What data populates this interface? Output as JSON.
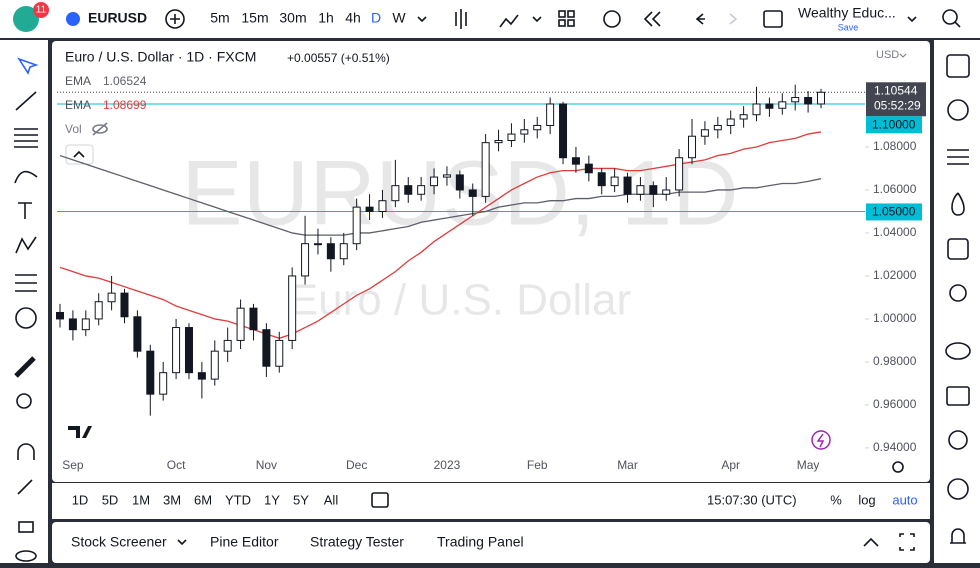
{
  "toolbar": {
    "badge": "11",
    "symbol": "EURUSD",
    "intervals": [
      "5m",
      "15m",
      "30m",
      "1h",
      "4h",
      "D",
      "W"
    ],
    "active_interval": "D",
    "account": "Wealthy Educ...",
    "save": "Save"
  },
  "chart_data": {
    "type": "candlestick",
    "title": "Euro / U.S. Dollar · 1D · FXCM",
    "change": "+0.00557 (+0.51%)",
    "watermark": "EURUSD, 1D",
    "watermark_subtitle": "Euro / U.S. Dollar",
    "currency": "USD",
    "countdown": "05:52:29",
    "volume_label": "Vol",
    "categories": [
      null,
      "Sep",
      null,
      null,
      null,
      null,
      null,
      null,
      null,
      "Oct",
      null,
      null,
      null,
      null,
      null,
      null,
      "Nov",
      null,
      null,
      null,
      null,
      null,
      null,
      "Dec",
      null,
      null,
      null,
      null,
      null,
      null,
      "2023",
      null,
      null,
      null,
      null,
      null,
      null,
      "Feb",
      null,
      null,
      null,
      null,
      null,
      null,
      "Mar",
      null,
      null,
      null,
      null,
      null,
      null,
      null,
      "Apr",
      null,
      null,
      null,
      null,
      null,
      "May",
      null
    ],
    "open": [
      1.003,
      1.0,
      0.995,
      1.0,
      1.008,
      1.012,
      1.001,
      0.985,
      0.965,
      0.975,
      0.996,
      0.975,
      0.972,
      0.985,
      0.99,
      1.005,
      0.995,
      0.978,
      0.99,
      1.02,
      1.035,
      1.035,
      1.028,
      1.035,
      1.052,
      1.05,
      1.055,
      1.062,
      1.058,
      1.062,
      1.066,
      1.067,
      1.06,
      1.057,
      1.082,
      1.083,
      1.086,
      1.088,
      1.09,
      1.1,
      1.075,
      1.072,
      1.068,
      1.062,
      1.066,
      1.058,
      1.062,
      1.058,
      1.06,
      1.075,
      1.085,
      1.088,
      1.09,
      1.093,
      1.095,
      1.1,
      1.098,
      1.101,
      1.103,
      1.1
    ],
    "high": [
      1.007,
      1.004,
      1.004,
      1.012,
      1.02,
      1.014,
      1.004,
      0.988,
      0.98,
      1.0,
      0.998,
      0.98,
      0.99,
      0.996,
      1.009,
      1.007,
      0.998,
      0.994,
      1.024,
      1.048,
      1.042,
      1.038,
      1.04,
      1.056,
      1.058,
      1.06,
      1.074,
      1.066,
      1.066,
      1.07,
      1.071,
      1.069,
      1.063,
      1.086,
      1.088,
      1.091,
      1.093,
      1.094,
      1.103,
      1.101,
      1.08,
      1.076,
      1.07,
      1.07,
      1.068,
      1.066,
      1.064,
      1.066,
      1.079,
      1.093,
      1.092,
      1.094,
      1.097,
      1.099,
      1.108,
      1.103,
      1.105,
      1.109,
      1.106,
      1.107
    ],
    "low": [
      0.996,
      0.99,
      0.992,
      0.997,
      1.004,
      0.998,
      0.982,
      0.955,
      0.962,
      0.972,
      0.972,
      0.963,
      0.969,
      0.98,
      0.986,
      0.99,
      0.973,
      0.975,
      0.986,
      1.016,
      1.03,
      1.022,
      1.025,
      1.032,
      1.046,
      1.047,
      1.052,
      1.054,
      1.055,
      1.058,
      1.062,
      1.056,
      1.048,
      1.054,
      1.078,
      1.08,
      1.082,
      1.084,
      1.086,
      1.072,
      1.068,
      1.064,
      1.058,
      1.059,
      1.054,
      1.055,
      1.052,
      1.055,
      1.057,
      1.072,
      1.081,
      1.084,
      1.086,
      1.089,
      1.092,
      1.094,
      1.095,
      1.097,
      1.096,
      1.098
    ],
    "close": [
      1.0,
      0.995,
      1.0,
      1.008,
      1.012,
      1.001,
      0.985,
      0.965,
      0.975,
      0.996,
      0.975,
      0.972,
      0.985,
      0.99,
      1.005,
      0.995,
      0.978,
      0.99,
      1.02,
      1.035,
      1.035,
      1.028,
      1.035,
      1.052,
      1.05,
      1.055,
      1.062,
      1.058,
      1.062,
      1.066,
      1.067,
      1.06,
      1.057,
      1.082,
      1.083,
      1.086,
      1.088,
      1.09,
      1.1,
      1.075,
      1.072,
      1.068,
      1.062,
      1.066,
      1.058,
      1.062,
      1.058,
      1.06,
      1.075,
      1.085,
      1.088,
      1.09,
      1.093,
      1.095,
      1.1,
      1.098,
      1.101,
      1.103,
      1.1,
      1.10544
    ],
    "up_color": "#ffffff",
    "down_color": "#131722",
    "wick_color": "#131722",
    "last_price_color": "#434651",
    "series": [
      {
        "name": "EMA",
        "color": "#5d606b",
        "values": [
          1.076,
          1.074,
          1.072,
          1.07,
          1.068,
          1.066,
          1.064,
          1.062,
          1.06,
          1.058,
          1.056,
          1.054,
          1.052,
          1.05,
          1.048,
          1.046,
          1.044,
          1.042,
          1.04,
          1.039,
          1.039,
          1.039,
          1.039,
          1.04,
          1.04,
          1.041,
          1.042,
          1.043,
          1.045,
          1.046,
          1.047,
          1.048,
          1.049,
          1.05,
          1.052,
          1.053,
          1.054,
          1.054,
          1.055,
          1.055,
          1.056,
          1.056,
          1.057,
          1.057,
          1.058,
          1.058,
          1.058,
          1.058,
          1.059,
          1.059,
          1.059,
          1.06,
          1.06,
          1.061,
          1.061,
          1.062,
          1.063,
          1.063,
          1.064,
          1.06524
        ]
      },
      {
        "name": "EMA",
        "color": "#e03c3c",
        "values": [
          1.024,
          1.022,
          1.02,
          1.019,
          1.017,
          1.015,
          1.013,
          1.011,
          1.009,
          1.006,
          1.004,
          1.002,
          1.0,
          0.999,
          0.997,
          0.995,
          0.993,
          0.991,
          0.993,
          0.996,
          0.999,
          1.003,
          1.007,
          1.011,
          1.014,
          1.018,
          1.022,
          1.027,
          1.031,
          1.036,
          1.04,
          1.044,
          1.048,
          1.052,
          1.056,
          1.06,
          1.063,
          1.066,
          1.068,
          1.069,
          1.069,
          1.07,
          1.07,
          1.07,
          1.069,
          1.069,
          1.07,
          1.071,
          1.072,
          1.073,
          1.074,
          1.076,
          1.077,
          1.079,
          1.08,
          1.082,
          1.083,
          1.084,
          1.086,
          1.08699
        ]
      }
    ],
    "hlines": [
      {
        "value": 1.1,
        "label": "1.10000"
      },
      {
        "value": 1.05,
        "label": "1.05000"
      }
    ],
    "hline_color": "#00bcd4",
    "ylim": [
      0.9367,
      1.1279
    ],
    "yticks": [
      {
        "value": 1.08,
        "label": "1.08000"
      },
      {
        "value": 1.06,
        "label": "1.06000"
      },
      {
        "value": 1.04,
        "label": "1.04000"
      },
      {
        "value": 1.02,
        "label": "1.02000"
      },
      {
        "value": 1.0,
        "label": "1.00000"
      },
      {
        "value": 0.98,
        "label": "0.98000"
      },
      {
        "value": 0.96,
        "label": "0.96000"
      },
      {
        "value": 0.94,
        "label": "0.94000"
      }
    ],
    "grid": false
  },
  "range_bar": {
    "ranges": [
      "1D",
      "5D",
      "1M",
      "3M",
      "6M",
      "YTD",
      "1Y",
      "5Y",
      "All"
    ],
    "clock": "15:07:30 (UTC)",
    "options": [
      "%",
      "log",
      "auto"
    ]
  },
  "panel": {
    "tabs": [
      "Stock Screener",
      "Pine Editor",
      "Strategy Tester",
      "Trading Panel"
    ]
  }
}
